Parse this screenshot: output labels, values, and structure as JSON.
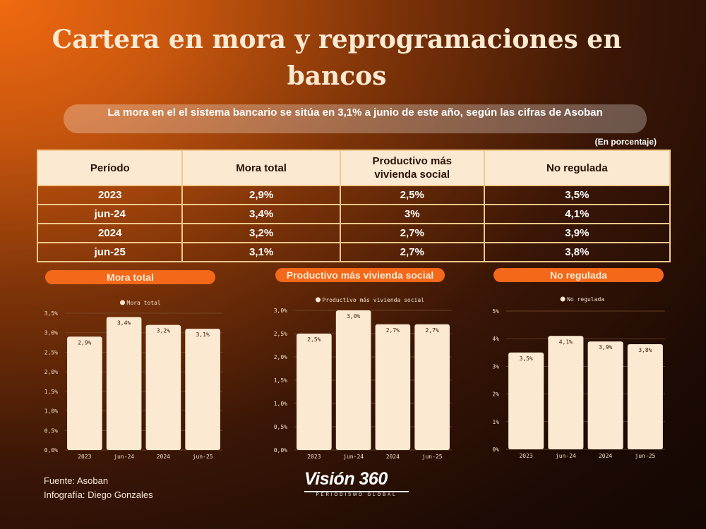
{
  "title": "Cartera en mora y reprogramaciones en bancos",
  "subtitle": "La mora en el el sistema bancario se sitúa en  3,1% a  junio de este año, según las cifras de Asoban",
  "unit_note": "(En porcentaje)",
  "table": {
    "headers": [
      "Período",
      "Mora total",
      "Productivo más vivienda social",
      "No regulada"
    ],
    "rows": [
      [
        "2023",
        "2,9%",
        "2,5%",
        "3,5%"
      ],
      [
        "jun-24",
        "3,4%",
        "3%",
        "4,1%"
      ],
      [
        "2024",
        "3,2%",
        "2,7%",
        "3,9%"
      ],
      [
        "jun-25",
        "3,1%",
        "2,7%",
        "3,8%"
      ]
    ]
  },
  "chart_data": [
    {
      "type": "bar",
      "title": "Mora total",
      "categories": [
        "2023",
        "jun-24",
        "2024",
        "jun-25"
      ],
      "series": [
        {
          "name": "Mora total",
          "values": [
            2.9,
            3.4,
            3.2,
            3.1
          ]
        }
      ],
      "value_labels": [
        "2,9%",
        "3,4%",
        "3,2%",
        "3,1%"
      ],
      "yticks": [
        "0,0%",
        "0,5%",
        "1,0%",
        "1,5%",
        "2,0%",
        "2,5%",
        "3,0%",
        "3,5%"
      ],
      "ylim": [
        0,
        3.5
      ],
      "color": "#fbe9d2"
    },
    {
      "type": "bar",
      "title": "Productivo más vivienda social",
      "categories": [
        "2023",
        "jun-24",
        "2024",
        "jun-25"
      ],
      "series": [
        {
          "name": "Productivo más vivienda social",
          "values": [
            2.5,
            3.0,
            2.7,
            2.7
          ]
        }
      ],
      "value_labels": [
        "2,5%",
        "3,0%",
        "2,7%",
        "2,7%"
      ],
      "yticks": [
        "0,0%",
        "0,5%",
        "1,0%",
        "1,5%",
        "2,0%",
        "2,5%",
        "3,0%"
      ],
      "ylim": [
        0,
        3.0
      ],
      "color": "#fbe9d2"
    },
    {
      "type": "bar",
      "title": "No regulada",
      "categories": [
        "2023",
        "jun-24",
        "2024",
        "jun-25"
      ],
      "series": [
        {
          "name": "No regulada",
          "values": [
            3.5,
            4.1,
            3.9,
            3.8
          ]
        }
      ],
      "value_labels": [
        "3,5%",
        "4,1%",
        "3,9%",
        "3,8%"
      ],
      "yticks": [
        "0%",
        "1%",
        "2%",
        "3%",
        "4%",
        "5%"
      ],
      "ylim": [
        0,
        5
      ],
      "color": "#fbe9d2"
    }
  ],
  "footer": {
    "source": "Fuente: Asoban",
    "credit": "Infografía: Diego Gonzales"
  },
  "logo": {
    "name": "Visión 360",
    "tagline": "PERIODISMO GLOBAL"
  }
}
